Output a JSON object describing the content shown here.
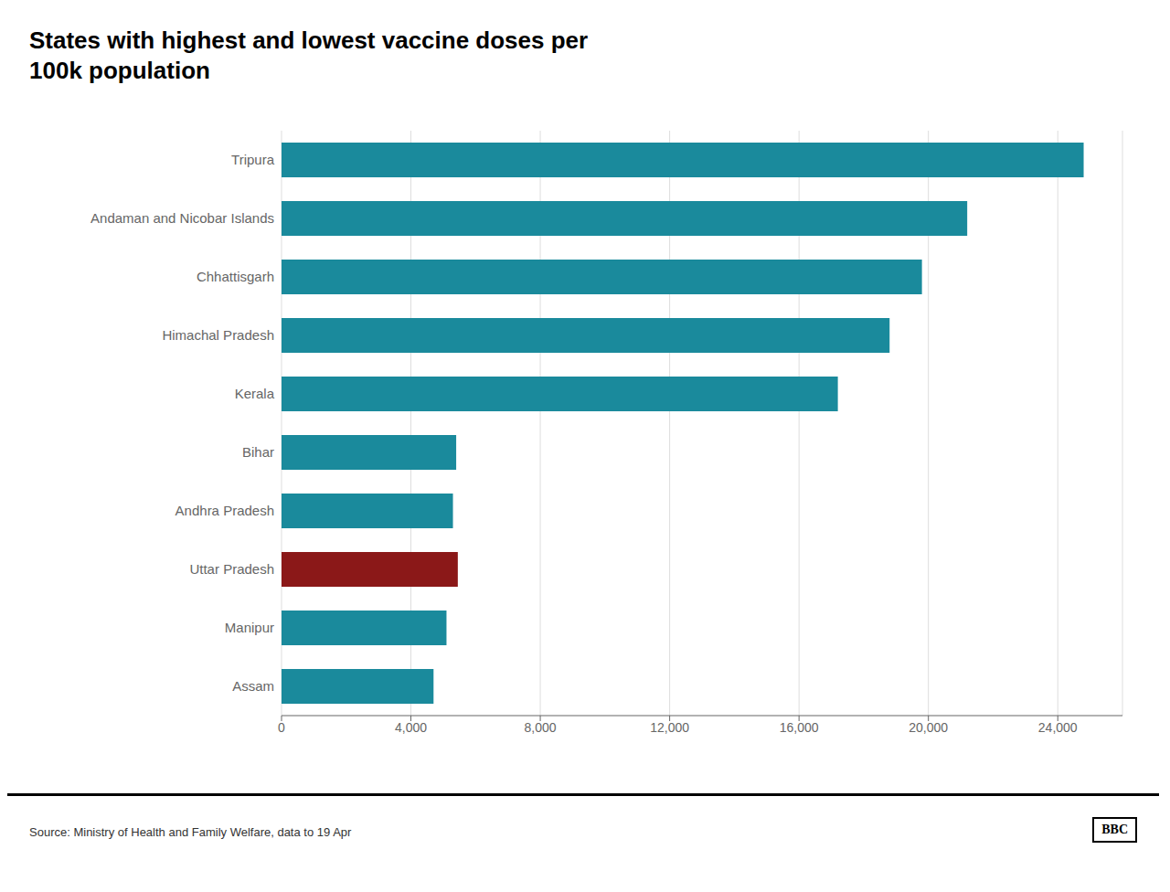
{
  "chart_data": {
    "type": "bar",
    "orientation": "horizontal",
    "title": "States with highest and lowest vaccine doses per\n100k population",
    "categories": [
      "Tripura",
      "Andaman and Nicobar Islands",
      "Chhattisgarh",
      "Himachal Pradesh",
      "Kerala",
      "Bihar",
      "Andhra Pradesh",
      "Uttar Pradesh",
      "Manipur",
      "Assam"
    ],
    "values": [
      24800,
      21200,
      19800,
      18800,
      17200,
      5400,
      5300,
      5450,
      5100,
      4700
    ],
    "colors": [
      "#1a8a9c",
      "#1a8a9c",
      "#1a8a9c",
      "#1a8a9c",
      "#1a8a9c",
      "#1a8a9c",
      "#1a8a9c",
      "#8b1818",
      "#1a8a9c",
      "#1a8a9c"
    ],
    "xlim": [
      0,
      26000
    ],
    "xticks": [
      0,
      {
        "value": 4000,
        "label": "4,000"
      },
      {
        "value": 8000,
        "label": "8,000"
      },
      {
        "value": 12000,
        "label": "12,000"
      },
      {
        "value": 16000,
        "label": "16,000"
      },
      {
        "value": 20000,
        "label": "20,000"
      },
      {
        "value": 24000,
        "label": "24,000"
      }
    ],
    "grid": true,
    "annotations": [
      "Source: Ministry of Health and Family Welfare, data to 19 Apr",
      "BBC"
    ]
  }
}
